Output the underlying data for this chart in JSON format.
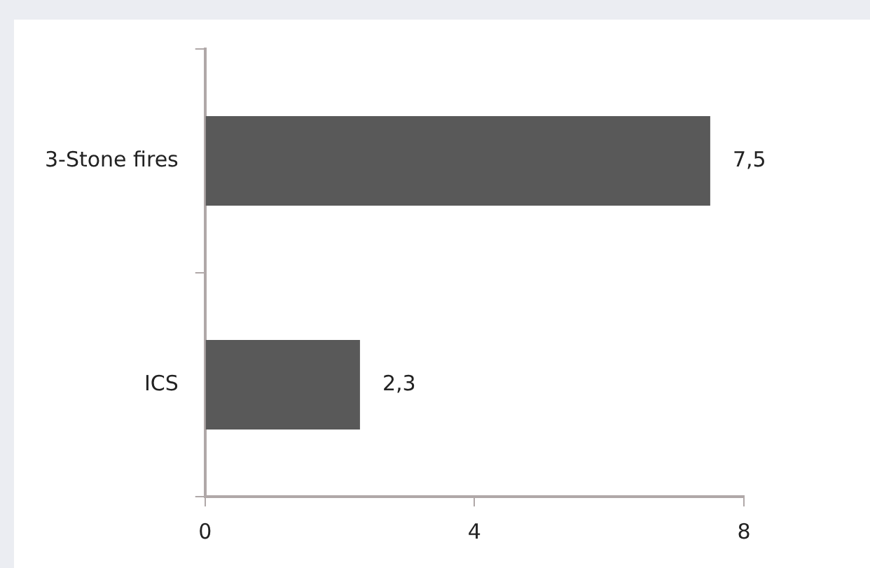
{
  "chart_data": {
    "type": "bar",
    "orientation": "horizontal",
    "categories": [
      "3-Stone fires",
      "ICS"
    ],
    "values": [
      7.5,
      2.3
    ],
    "color": "#595959",
    "value_labels": [
      "7,5",
      "2,3"
    ],
    "xlim": [
      0,
      8
    ],
    "xticks": [
      0,
      4,
      8
    ],
    "grid": false,
    "legend": false
  }
}
